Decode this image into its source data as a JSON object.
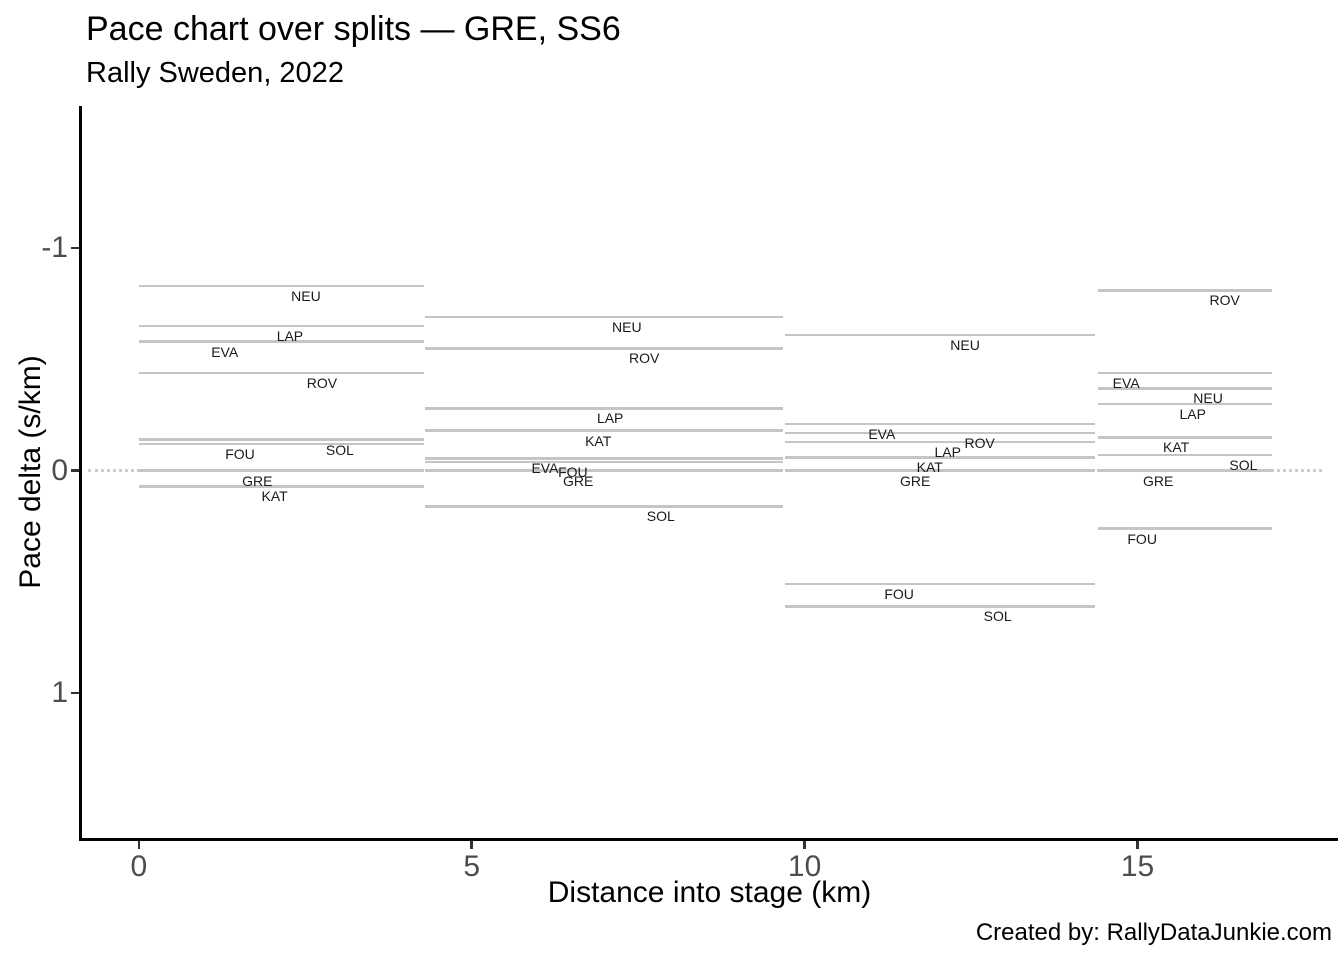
{
  "page": {
    "background": "#ffffff"
  },
  "chart_data": {
    "type": "line",
    "title": "Pace chart over splits — GRE, SS6",
    "subtitle": "Rally Sweden, 2022",
    "caption": "Created by: RallyDataJunkie.com",
    "xlabel": "Distance into stage (km)",
    "ylabel": "Pace delta (s/km)",
    "x_ticks": [
      0,
      5,
      10,
      15
    ],
    "x_tick_labels": [
      "0",
      "5",
      "10",
      "15"
    ],
    "y_ticks": [
      -1,
      0,
      1
    ],
    "y_tick_labels": [
      "-1",
      "0",
      "1"
    ],
    "y_axis_inverted": true,
    "xlim": [
      -0.9,
      18.1
    ],
    "ylim": [
      -1.63,
      1.66
    ],
    "grid": false,
    "legend": "none",
    "reference_driver": "GRE",
    "zero_reference": {
      "value": 0,
      "style": "dotted"
    },
    "colors": {
      "pace_line": "#c5c5c5",
      "zero_line": "#cccccc",
      "driver_label": "#1a1a1a",
      "axis_line": "#000000",
      "axis_text": "#4d4d4d",
      "background": "#ffffff"
    },
    "segments": [
      {
        "split": 1,
        "x_start": 0.0,
        "x_end": 4.28,
        "drivers": [
          {
            "code": "NEU",
            "value": -0.83,
            "label_x": 2.51
          },
          {
            "code": "LAP",
            "value": -0.65,
            "label_x": 2.27
          },
          {
            "code": "EVA",
            "value": -0.58,
            "label_x": 1.29
          },
          {
            "code": "ROV",
            "value": -0.44,
            "label_x": 2.75
          },
          {
            "code": "SOL",
            "value": -0.14,
            "label_x": 3.02
          },
          {
            "code": "FOU",
            "value": -0.12,
            "label_x": 1.52
          },
          {
            "code": "GRE",
            "value": 0.0,
            "label_x": 1.78
          },
          {
            "code": "KAT",
            "value": 0.07,
            "label_x": 2.04
          }
        ]
      },
      {
        "split": 2,
        "x_start": 4.3,
        "x_end": 9.68,
        "drivers": [
          {
            "code": "NEU",
            "value": -0.69,
            "label_x": 7.33
          },
          {
            "code": "ROV",
            "value": -0.55,
            "label_x": 7.59
          },
          {
            "code": "LAP",
            "value": -0.28,
            "label_x": 7.08
          },
          {
            "code": "KAT",
            "value": -0.18,
            "label_x": 6.9
          },
          {
            "code": "EVA",
            "value": -0.055,
            "label_x": 6.1
          },
          {
            "code": "FOU",
            "value": -0.04,
            "label_x": 6.52
          },
          {
            "code": "GRE",
            "value": 0.0,
            "label_x": 6.6
          },
          {
            "code": "SOL",
            "value": 0.16,
            "label_x": 7.84
          }
        ]
      },
      {
        "split": 3,
        "x_start": 9.7,
        "x_end": 14.36,
        "drivers": [
          {
            "code": "NEU",
            "value": -0.61,
            "label_x": 12.41
          },
          {
            "code": "EVA",
            "value": -0.21,
            "label_x": 11.16
          },
          {
            "code": "ROV",
            "value": -0.17,
            "label_x": 12.63
          },
          {
            "code": "LAP",
            "value": -0.13,
            "label_x": 12.15
          },
          {
            "code": "KAT",
            "value": -0.06,
            "label_x": 11.88
          },
          {
            "code": "GRE",
            "value": 0.0,
            "label_x": 11.66
          },
          {
            "code": "FOU",
            "value": 0.51,
            "label_x": 11.42
          },
          {
            "code": "SOL",
            "value": 0.61,
            "label_x": 12.9
          }
        ]
      },
      {
        "split": 4,
        "x_start": 14.4,
        "x_end": 17.02,
        "drivers": [
          {
            "code": "ROV",
            "value": -0.81,
            "label_x": 16.31
          },
          {
            "code": "EVA",
            "value": -0.44,
            "label_x": 14.83
          },
          {
            "code": "NEU",
            "value": -0.37,
            "label_x": 16.06
          },
          {
            "code": "LAP",
            "value": -0.3,
            "label_x": 15.83
          },
          {
            "code": "KAT",
            "value": -0.15,
            "label_x": 15.58
          },
          {
            "code": "SOL",
            "value": -0.07,
            "label_x": 16.59
          },
          {
            "code": "GRE",
            "value": 0.0,
            "label_x": 15.31
          },
          {
            "code": "FOU",
            "value": 0.26,
            "label_x": 15.07
          }
        ]
      }
    ]
  }
}
